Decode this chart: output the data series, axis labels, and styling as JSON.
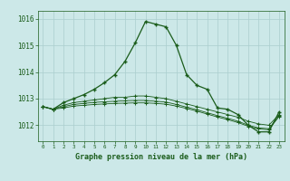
{
  "title": "Graphe pression niveau de la mer (hPa)",
  "background_color": "#cce8e8",
  "grid_color": "#aacece",
  "line_color": "#1a5c1a",
  "xlim": [
    -0.5,
    23.5
  ],
  "ylim": [
    1011.4,
    1016.3
  ],
  "yticks": [
    1012,
    1013,
    1014,
    1015,
    1016
  ],
  "xticks": [
    0,
    1,
    2,
    3,
    4,
    5,
    6,
    7,
    8,
    9,
    10,
    11,
    12,
    13,
    14,
    15,
    16,
    17,
    18,
    19,
    20,
    21,
    22,
    23
  ],
  "series": [
    {
      "x": [
        0,
        1,
        2,
        3,
        4,
        5,
        6,
        7,
        8,
        9,
        10,
        11,
        12,
        13,
        14,
        15,
        16,
        17,
        18,
        19,
        20,
        21,
        22,
        23
      ],
      "y": [
        1012.7,
        1012.6,
        1012.85,
        1013.0,
        1013.15,
        1013.35,
        1013.6,
        1013.9,
        1014.4,
        1015.1,
        1015.9,
        1015.8,
        1015.7,
        1015.0,
        1013.9,
        1013.5,
        1013.35,
        1012.65,
        1012.6,
        1012.4,
        1012.0,
        1011.75,
        1011.75,
        1012.5
      ],
      "marker": "+",
      "markersize": 3.5,
      "linewidth": 0.9,
      "markeredgewidth": 1.0
    },
    {
      "x": [
        0,
        1,
        2,
        3,
        4,
        5,
        6,
        7,
        8,
        9,
        10,
        11,
        12,
        13,
        14,
        15,
        16,
        17,
        18,
        19,
        20,
        21,
        22,
        23
      ],
      "y": [
        1012.7,
        1012.6,
        1012.75,
        1012.85,
        1012.9,
        1012.95,
        1013.0,
        1013.05,
        1013.05,
        1013.1,
        1013.1,
        1013.05,
        1013.0,
        1012.9,
        1012.8,
        1012.7,
        1012.6,
        1012.5,
        1012.4,
        1012.3,
        1012.15,
        1012.05,
        1012.0,
        1012.4
      ],
      "marker": "+",
      "markersize": 2.5,
      "linewidth": 0.6,
      "markeredgewidth": 0.7
    },
    {
      "x": [
        0,
        1,
        2,
        3,
        4,
        5,
        6,
        7,
        8,
        9,
        10,
        11,
        12,
        13,
        14,
        15,
        16,
        17,
        18,
        19,
        20,
        21,
        22,
        23
      ],
      "y": [
        1012.7,
        1012.6,
        1012.7,
        1012.78,
        1012.82,
        1012.86,
        1012.88,
        1012.9,
        1012.92,
        1012.93,
        1012.93,
        1012.9,
        1012.87,
        1012.78,
        1012.68,
        1012.58,
        1012.47,
        1012.36,
        1012.26,
        1012.15,
        1012.0,
        1011.9,
        1011.87,
        1012.35
      ],
      "marker": "+",
      "markersize": 2.5,
      "linewidth": 0.6,
      "markeredgewidth": 0.7
    },
    {
      "x": [
        0,
        1,
        2,
        3,
        4,
        5,
        6,
        7,
        8,
        9,
        10,
        11,
        12,
        13,
        14,
        15,
        16,
        17,
        18,
        19,
        20,
        21,
        22,
        23
      ],
      "y": [
        1012.7,
        1012.6,
        1012.65,
        1012.72,
        1012.75,
        1012.78,
        1012.8,
        1012.82,
        1012.83,
        1012.84,
        1012.84,
        1012.82,
        1012.79,
        1012.72,
        1012.63,
        1012.53,
        1012.42,
        1012.31,
        1012.21,
        1012.1,
        1011.96,
        1011.86,
        1011.83,
        1012.33
      ],
      "marker": "+",
      "markersize": 2.5,
      "linewidth": 0.6,
      "markeredgewidth": 0.7
    }
  ]
}
